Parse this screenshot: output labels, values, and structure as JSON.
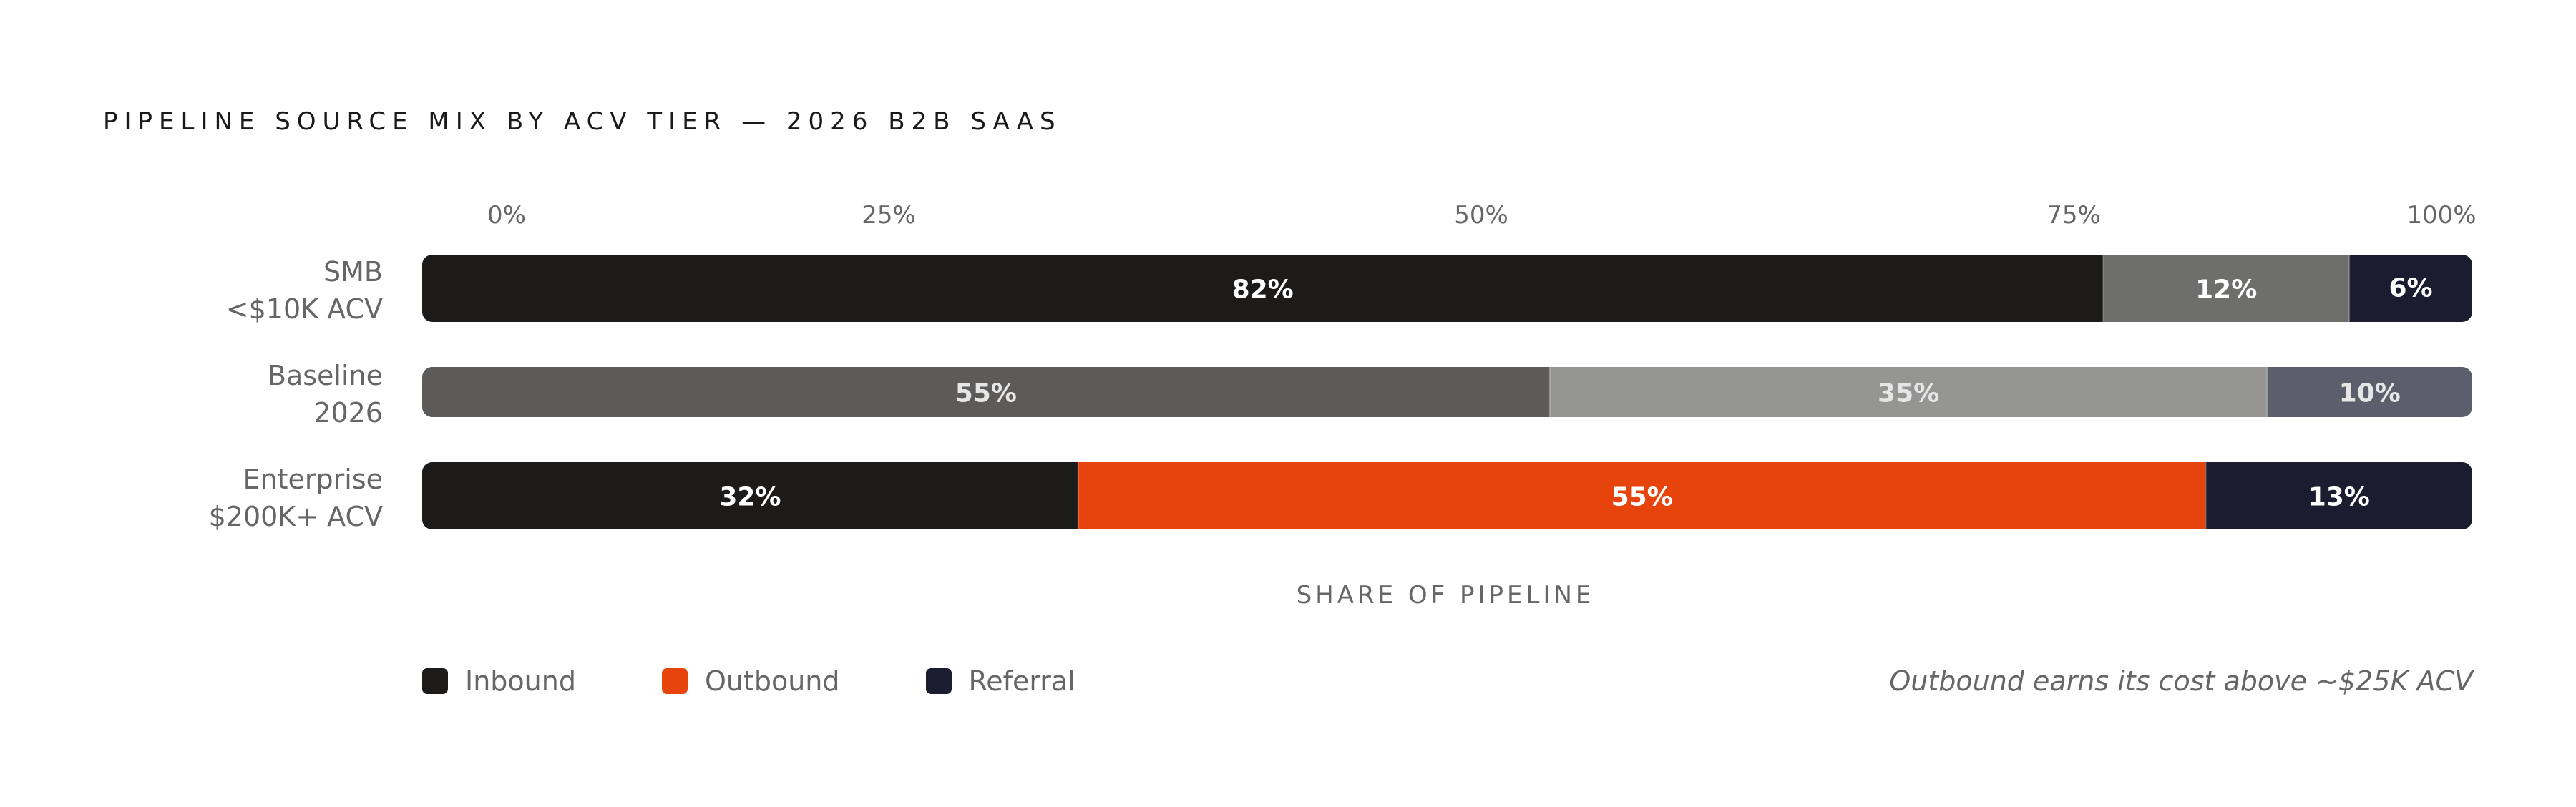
{
  "chart_data": {
    "type": "bar",
    "orientation": "horizontal",
    "stacked": true,
    "title": "PIPELINE SOURCE MIX BY ACV TIER — 2026 B2B SAAS",
    "xlabel": "SHARE OF PIPELINE",
    "ylabel": "",
    "xlim": [
      0,
      100
    ],
    "x_ticks": [
      "0%",
      "25%",
      "50%",
      "75%",
      "100%"
    ],
    "categories": [
      {
        "line1": "SMB",
        "line2": "<$10K ACV"
      },
      {
        "line1": "Baseline",
        "line2": "2026"
      },
      {
        "line1": "Enterprise",
        "line2": "$200K+ ACV"
      }
    ],
    "series": [
      {
        "name": "Inbound",
        "values": [
          82,
          55,
          32
        ],
        "labels": [
          "82%",
          "55%",
          "32%"
        ]
      },
      {
        "name": "Outbound",
        "values": [
          12,
          35,
          55
        ],
        "labels": [
          "12%",
          "35%",
          "55%"
        ]
      },
      {
        "name": "Referral",
        "values": [
          6,
          10,
          13
        ],
        "labels": [
          "6%",
          "10%",
          "13%"
        ]
      }
    ],
    "segment_colors": [
      [
        "#1c1b1a",
        "#6e6e6c",
        "#1b1c30"
      ],
      [
        "#5c5b59",
        "#959594",
        "#5d5e6c"
      ],
      [
        "#1c1b1a",
        "#e6440c",
        "#1b1c30"
      ]
    ],
    "segment_label_colors": [
      [
        "#ffffff",
        "#ffffff",
        "#ffffff"
      ],
      [
        "#e6e6e6",
        "#e6e6e6",
        "#e6e6e6"
      ],
      [
        "#ffffff",
        "#ffffff",
        "#ffffff"
      ]
    ],
    "legend": {
      "placement": "bottom-left",
      "items": [
        {
          "label": "Inbound",
          "color": "#1c1b1a"
        },
        {
          "label": "Outbound",
          "color": "#e6440c"
        },
        {
          "label": "Referral",
          "color": "#1b1c30"
        }
      ]
    },
    "annotation": "Outbound earns its cost above ~$25K ACV",
    "grid": false
  }
}
